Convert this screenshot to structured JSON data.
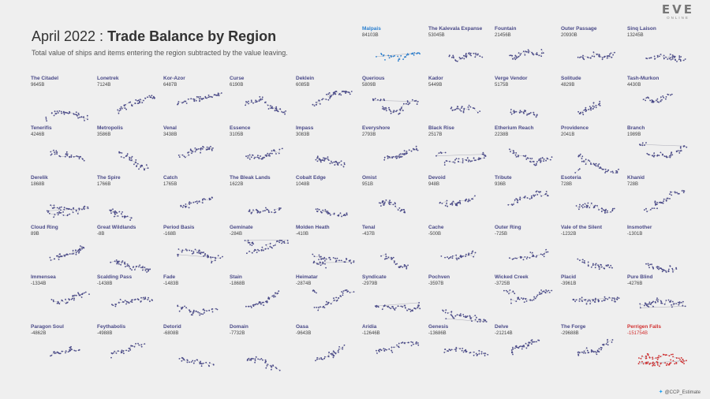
{
  "header": {
    "title_prefix": "April 2022 : ",
    "title_main": "Trade Balance by Region",
    "subtitle": "Total value of ships and items entering the region subtracted by the value leaving."
  },
  "logo": {
    "mark": "EVE",
    "sub": "ONLINE"
  },
  "credit": {
    "handle": "@CCP_Estimate",
    "icon": "twitter-bird-icon"
  },
  "colors": {
    "default": "#4a4a88",
    "positive_highlight": "#2a7fcf",
    "negative_highlight": "#d23030",
    "edges": "#9a9aa8"
  },
  "chart_data": {
    "type": "small-multiples-scatter",
    "metric": "Trade balance",
    "grid_columns": 10,
    "regions": [
      {
        "name": "Malpais",
        "value_label": "84103B",
        "value_b": 84103,
        "highlight": "positive"
      },
      {
        "name": "The Kalevala Expanse",
        "value_label": "53045B",
        "value_b": 53045
      },
      {
        "name": "Fountain",
        "value_label": "21456B",
        "value_b": 21456
      },
      {
        "name": "Outer Passage",
        "value_label": "20930B",
        "value_b": 20930
      },
      {
        "name": "Sinq Laison",
        "value_label": "13245B",
        "value_b": 13245
      },
      {
        "name": "The Citadel",
        "value_label": "9645B",
        "value_b": 9645
      },
      {
        "name": "Lonetrek",
        "value_label": "7124B",
        "value_b": 7124
      },
      {
        "name": "Kor-Azor",
        "value_label": "6487B",
        "value_b": 6487
      },
      {
        "name": "Curse",
        "value_label": "6190B",
        "value_b": 6190
      },
      {
        "name": "Deklein",
        "value_label": "6085B",
        "value_b": 6085
      },
      {
        "name": "Querious",
        "value_label": "5809B",
        "value_b": 5809
      },
      {
        "name": "Kador",
        "value_label": "5449B",
        "value_b": 5449
      },
      {
        "name": "Verge Vendor",
        "value_label": "5175B",
        "value_b": 5175
      },
      {
        "name": "Solitude",
        "value_label": "4829B",
        "value_b": 4829
      },
      {
        "name": "Tash-Murkon",
        "value_label": "4430B",
        "value_b": 4430
      },
      {
        "name": "Tenerifis",
        "value_label": "4246B",
        "value_b": 4246
      },
      {
        "name": "Metropolis",
        "value_label": "3586B",
        "value_b": 3586
      },
      {
        "name": "Venal",
        "value_label": "3438B",
        "value_b": 3438
      },
      {
        "name": "Essence",
        "value_label": "3105B",
        "value_b": 3105
      },
      {
        "name": "Impass",
        "value_label": "3083B",
        "value_b": 3083
      },
      {
        "name": "Everyshore",
        "value_label": "2793B",
        "value_b": 2793
      },
      {
        "name": "Black Rise",
        "value_label": "2517B",
        "value_b": 2517
      },
      {
        "name": "Etherium Reach",
        "value_label": "2238B",
        "value_b": 2238
      },
      {
        "name": "Providence",
        "value_label": "2041B",
        "value_b": 2041
      },
      {
        "name": "Branch",
        "value_label": "1989B",
        "value_b": 1989
      },
      {
        "name": "Derelik",
        "value_label": "1868B",
        "value_b": 1868
      },
      {
        "name": "The Spire",
        "value_label": "1766B",
        "value_b": 1766
      },
      {
        "name": "Catch",
        "value_label": "1765B",
        "value_b": 1765
      },
      {
        "name": "The Bleak Lands",
        "value_label": "1622B",
        "value_b": 1622
      },
      {
        "name": "Cobalt Edge",
        "value_label": "1048B",
        "value_b": 1048
      },
      {
        "name": "Omist",
        "value_label": "951B",
        "value_b": 951
      },
      {
        "name": "Devoid",
        "value_label": "948B",
        "value_b": 948
      },
      {
        "name": "Tribute",
        "value_label": "936B",
        "value_b": 936
      },
      {
        "name": "Esoteria",
        "value_label": "728B",
        "value_b": 728
      },
      {
        "name": "Khanid",
        "value_label": "728B",
        "value_b": 728
      },
      {
        "name": "Cloud Ring",
        "value_label": "89B",
        "value_b": 89
      },
      {
        "name": "Great Wildlands",
        "value_label": "-8B",
        "value_b": -8
      },
      {
        "name": "Period Basis",
        "value_label": "-168B",
        "value_b": -168
      },
      {
        "name": "Geminate",
        "value_label": "-284B",
        "value_b": -284
      },
      {
        "name": "Molden Heath",
        "value_label": "-410B",
        "value_b": -410
      },
      {
        "name": "Tenal",
        "value_label": "-437B",
        "value_b": -437
      },
      {
        "name": "Cache",
        "value_label": "-500B",
        "value_b": -500
      },
      {
        "name": "Outer Ring",
        "value_label": "-725B",
        "value_b": -725
      },
      {
        "name": "Vale of the Silent",
        "value_label": "-1232B",
        "value_b": -1232
      },
      {
        "name": "Insmother",
        "value_label": "-1301B",
        "value_b": -1301
      },
      {
        "name": "Immensea",
        "value_label": "-1334B",
        "value_b": -1334
      },
      {
        "name": "Scalding Pass",
        "value_label": "-1438B",
        "value_b": -1438
      },
      {
        "name": "Fade",
        "value_label": "-1483B",
        "value_b": -1483
      },
      {
        "name": "Stain",
        "value_label": "-1868B",
        "value_b": -1868
      },
      {
        "name": "Heimatar",
        "value_label": "-2874B",
        "value_b": -2874
      },
      {
        "name": "Syndicate",
        "value_label": "-2979B",
        "value_b": -2979
      },
      {
        "name": "Pochven",
        "value_label": "-3597B",
        "value_b": -3597
      },
      {
        "name": "Wicked Creek",
        "value_label": "-3725B",
        "value_b": -3725
      },
      {
        "name": "Placid",
        "value_label": "-3961B",
        "value_b": -3961
      },
      {
        "name": "Pure Blind",
        "value_label": "-4276B",
        "value_b": -4276
      },
      {
        "name": "Paragon Soul",
        "value_label": "-4862B",
        "value_b": -4862
      },
      {
        "name": "Feythabolis",
        "value_label": "-4988B",
        "value_b": -4988
      },
      {
        "name": "Detorid",
        "value_label": "-6808B",
        "value_b": -6808
      },
      {
        "name": "Domain",
        "value_label": "-7732B",
        "value_b": -7732
      },
      {
        "name": "Oasa",
        "value_label": "-9643B",
        "value_b": -9643
      },
      {
        "name": "Aridia",
        "value_label": "-12646B",
        "value_b": -12646
      },
      {
        "name": "Genesis",
        "value_label": "-13686B",
        "value_b": -13686
      },
      {
        "name": "Delve",
        "value_label": "-21214B",
        "value_b": -21214
      },
      {
        "name": "The Forge",
        "value_label": "-29688B",
        "value_b": -29688
      },
      {
        "name": "Perrigen Falls",
        "value_label": "-151754B",
        "value_b": -151754,
        "highlight": "negative"
      }
    ]
  }
}
